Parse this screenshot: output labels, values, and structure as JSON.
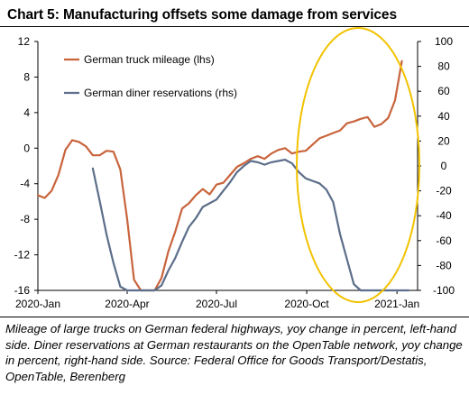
{
  "title": "Chart 5:  Manufacturing offsets some damage from services",
  "caption": "Mileage of large trucks on German federal highways, yoy change in percent, left-hand side. Diner reservations at German restaurants on the OpenTable network, yoy change in percent, right-hand side. Source: Federal Office for Goods Transport/Destatis, OpenTable, Berenberg",
  "chart_data": {
    "type": "line",
    "x_ticks": [
      "2020-Jan",
      "2020-Apr",
      "2020-Jul",
      "2020-Oct",
      "2021-Jan"
    ],
    "xlim": [
      "2020-01-01",
      "2021-01-22"
    ],
    "y_left": {
      "ticks": [
        "12",
        "8",
        "4",
        "0",
        "-4",
        "-8",
        "-12",
        "-16"
      ],
      "ylim": [
        -16,
        12
      ]
    },
    "y_right": {
      "ticks": [
        "100",
        "80",
        "60",
        "40",
        "20",
        "0",
        "-20",
        "-40",
        "-60",
        "-80",
        "-100"
      ],
      "ylim": [
        -100,
        100
      ]
    },
    "grid": false,
    "legend_position": "top-left",
    "annotation": "yellow ellipse highlighting Oct 2020 – Jan 2021",
    "colors": {
      "truck": "#c8643c",
      "diner": "#5c6e8a",
      "highlight": "#f2c200"
    },
    "series": [
      {
        "name": "German truck mileage (lhs)",
        "axis": "left",
        "x": [
          "2020-01-01",
          "2020-01-08",
          "2020-01-15",
          "2020-01-22",
          "2020-01-29",
          "2020-02-05",
          "2020-02-12",
          "2020-02-19",
          "2020-02-26",
          "2020-03-04",
          "2020-03-11",
          "2020-03-18",
          "2020-03-25",
          "2020-04-01",
          "2020-04-08",
          "2020-04-15",
          "2020-04-22",
          "2020-04-29",
          "2020-05-06",
          "2020-05-13",
          "2020-05-20",
          "2020-05-27",
          "2020-06-03",
          "2020-06-10",
          "2020-06-17",
          "2020-06-24",
          "2020-07-01",
          "2020-07-08",
          "2020-07-15",
          "2020-07-22",
          "2020-07-29",
          "2020-08-05",
          "2020-08-12",
          "2020-08-19",
          "2020-08-26",
          "2020-09-02",
          "2020-09-09",
          "2020-09-16",
          "2020-09-23",
          "2020-09-30",
          "2020-10-07",
          "2020-10-14",
          "2020-10-21",
          "2020-10-28",
          "2020-11-04",
          "2020-11-11",
          "2020-11-18",
          "2020-11-25",
          "2020-12-02",
          "2020-12-09",
          "2020-12-16",
          "2020-12-23",
          "2020-12-30",
          "2021-01-06"
        ],
        "values": [
          -5.3,
          -5.6,
          -4.8,
          -3,
          -0.2,
          0.9,
          0.7,
          0.2,
          -0.8,
          -0.8,
          -0.3,
          -0.4,
          -2.4,
          -8,
          -14.8,
          -16,
          -16,
          -16,
          -14.6,
          -11.6,
          -9.4,
          -6.8,
          -6.2,
          -5.3,
          -4.6,
          -5.2,
          -4.1,
          -3.9,
          -3,
          -2.1,
          -1.7,
          -1.2,
          -0.9,
          -1.2,
          -0.6,
          -0.2,
          0,
          -0.6,
          -0.4,
          -0.3,
          0.4,
          1.1,
          1.4,
          1.7,
          2,
          2.8,
          3,
          3.3,
          3.5,
          2.4,
          2.7,
          3.4,
          5.4,
          9.8
        ]
      },
      {
        "name": "German diner reservations (rhs)",
        "axis": "right",
        "x": [
          "2020-02-26",
          "2020-03-04",
          "2020-03-11",
          "2020-03-18",
          "2020-03-25",
          "2020-04-01",
          "2020-04-08",
          "2020-04-15",
          "2020-04-22",
          "2020-04-29",
          "2020-05-06",
          "2020-05-13",
          "2020-05-20",
          "2020-05-27",
          "2020-06-03",
          "2020-06-10",
          "2020-06-17",
          "2020-06-24",
          "2020-07-01",
          "2020-07-08",
          "2020-07-15",
          "2020-07-22",
          "2020-07-29",
          "2020-08-05",
          "2020-08-12",
          "2020-08-19",
          "2020-08-26",
          "2020-09-02",
          "2020-09-09",
          "2020-09-16",
          "2020-09-23",
          "2020-09-30",
          "2020-10-07",
          "2020-10-14",
          "2020-10-21",
          "2020-10-28",
          "2020-11-04",
          "2020-11-11",
          "2020-11-18",
          "2020-11-25",
          "2020-12-02",
          "2020-12-09",
          "2020-12-16",
          "2020-12-23",
          "2020-12-30",
          "2021-01-06",
          "2021-01-13"
        ],
        "values": [
          -2,
          -28,
          -55,
          -78,
          -97,
          -100,
          -100,
          -100,
          -100,
          -100,
          -96,
          -84,
          -74,
          -61,
          -49,
          -42,
          -33,
          -30,
          -27,
          -20,
          -13,
          -5,
          0,
          4,
          3,
          1,
          3,
          4,
          5,
          2,
          -5,
          -10,
          -12,
          -14,
          -19,
          -29,
          -55,
          -75,
          -95,
          -100,
          -100,
          -100,
          -100,
          -100,
          -100,
          -100,
          -100
        ]
      }
    ]
  }
}
